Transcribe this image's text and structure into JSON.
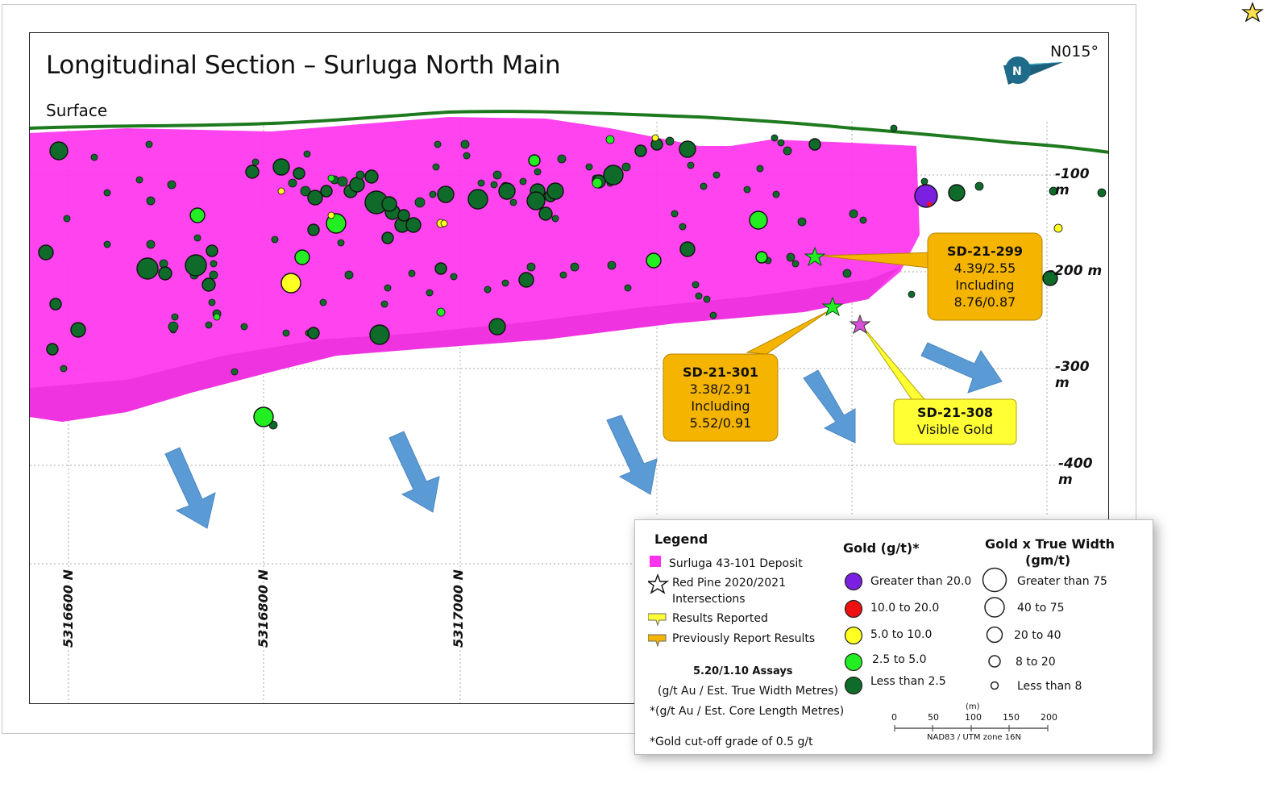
{
  "title": "Longitudinal Section – Surluga North Main",
  "surface_label": "Surface",
  "north_arrow": {
    "label": "N015°",
    "icon": "north-arrow-icon"
  },
  "depth_labels": [
    "-100 m",
    "-200 m",
    "-300 m",
    "-400 m"
  ],
  "northing_labels": [
    "5316600 N",
    "5316800 N",
    "5317000 N"
  ],
  "callouts": [
    {
      "hole": "SD-21-299",
      "lines": [
        "4.39/2.55",
        "Including",
        "8.76/0.87"
      ],
      "style": "previously-reported"
    },
    {
      "hole": "SD-21-301",
      "lines": [
        "3.38/2.91",
        "Including",
        "5.52/0.91"
      ],
      "style": "previously-reported"
    },
    {
      "hole": "SD-21-308",
      "lines": [
        "Visible Gold"
      ],
      "style": "results-reported"
    }
  ],
  "legend": {
    "title": "Legend",
    "items": {
      "deposit": "Surluga 43-101 Deposit",
      "intersections_1": "Red Pine 2020/2021",
      "intersections_2": "Intersections",
      "results_reported": "Results Reported",
      "previously_reported": "Previously Report Results"
    },
    "assay_example": "5.20/1.10 Assays",
    "assay_note_1": "(g/t Au / Est. True Width Metres)",
    "assay_note_2": "*(g/t Au / Est. Core Length Metres)",
    "cutoff_note": "*Gold cut-off grade of 0.5 g/t",
    "gold_title": "Gold (g/t)*",
    "gold_classes": [
      {
        "label": "Greater than 20.0",
        "color": "#7b1fe0"
      },
      {
        "label": "10.0 to 20.0",
        "color": "#ee1111"
      },
      {
        "label": "5.0 to 10.0",
        "color": "#ffff22"
      },
      {
        "label": "2.5 to 5.0",
        "color": "#22ee22"
      },
      {
        "label": "Less than 2.5",
        "color": "#0f6b2a"
      }
    ],
    "gtw_title_1": "Gold x True Width",
    "gtw_title_2": "(gm/t)",
    "gtw_classes": [
      "Greater than 75",
      "40 to 75",
      "20 to 40",
      "8 to 20",
      "Less than 8"
    ],
    "scale": {
      "ticks": [
        "0",
        "50",
        "100",
        "150",
        "200"
      ],
      "unit": "(m)",
      "projection": "NAD83 / UTM zone 16N"
    }
  },
  "colors": {
    "deposit": "#ff33ee",
    "surface_line": "#1e7a1e",
    "callout_orange": "#f5b400",
    "callout_yellow": "#ffff33",
    "arrow_blue": "#5b9bd5"
  }
}
